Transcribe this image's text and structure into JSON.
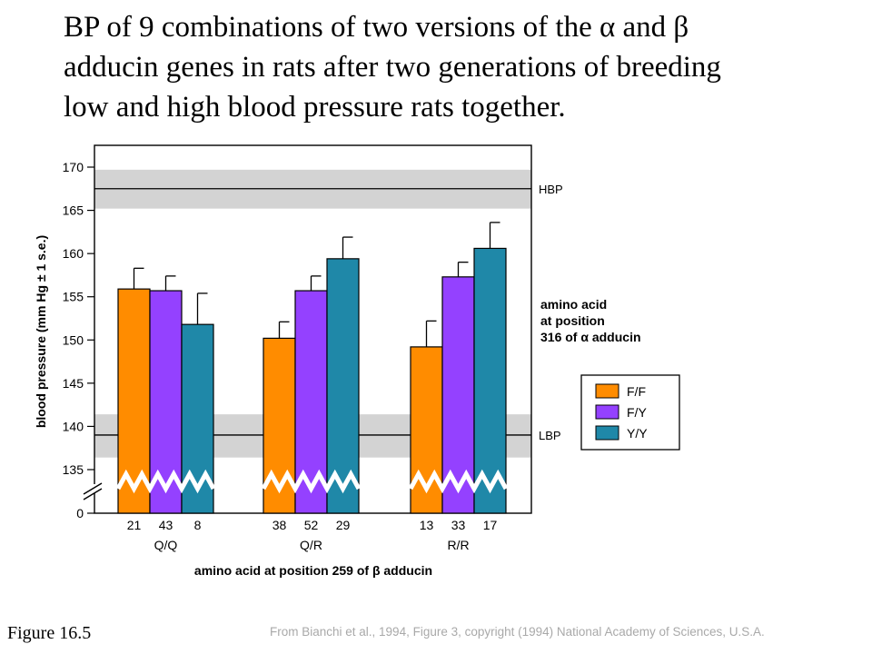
{
  "title_lines": [
    "BP of 9 combinations of two versions of the α and β",
    "adducin genes in rats after two generations of breeding",
    "low and high blood pressure rats together."
  ],
  "figure_label": "Figure 16.5",
  "credit": "From Bianchi et al., 1994, Figure 3, copyright (1994) National Academy of Sciences, U.S.A.",
  "chart_data": {
    "type": "bar",
    "ylabel": "blood pressure (mm Hg ± 1 s.e.)",
    "xlabel": "amino acid at position 259 of β adducin",
    "y_ticks": [
      135,
      140,
      145,
      150,
      155,
      160,
      165,
      170
    ],
    "y_zero_tick": 0,
    "ylim": [
      133,
      172
    ],
    "axis_break": true,
    "legend_title_lines": [
      "amino acid",
      "at position",
      "316 of α adducin"
    ],
    "legend_position": "right",
    "groups": [
      "Q/Q",
      "Q/R",
      "R/R"
    ],
    "series": [
      {
        "name": "F/F",
        "color": "#ff8c00",
        "values": [
          155.9,
          150.2,
          149.2
        ],
        "errors": [
          2.4,
          1.9,
          3.0
        ],
        "n": [
          21,
          38,
          13
        ]
      },
      {
        "name": "F/Y",
        "color": "#9441ff",
        "values": [
          155.7,
          155.7,
          157.3
        ],
        "errors": [
          1.7,
          1.7,
          1.7
        ],
        "n": [
          43,
          52,
          33
        ]
      },
      {
        "name": "Y/Y",
        "color": "#1f88a8",
        "values": [
          151.8,
          159.4,
          160.6
        ],
        "errors": [
          3.6,
          2.5,
          3.0
        ],
        "n": [
          8,
          29,
          17
        ]
      }
    ],
    "reference_bands": [
      {
        "label": "HBP",
        "mean": 167.5,
        "low": 165.2,
        "high": 169.7
      },
      {
        "label": "LBP",
        "mean": 139.0,
        "low": 136.4,
        "high": 141.4
      }
    ]
  }
}
